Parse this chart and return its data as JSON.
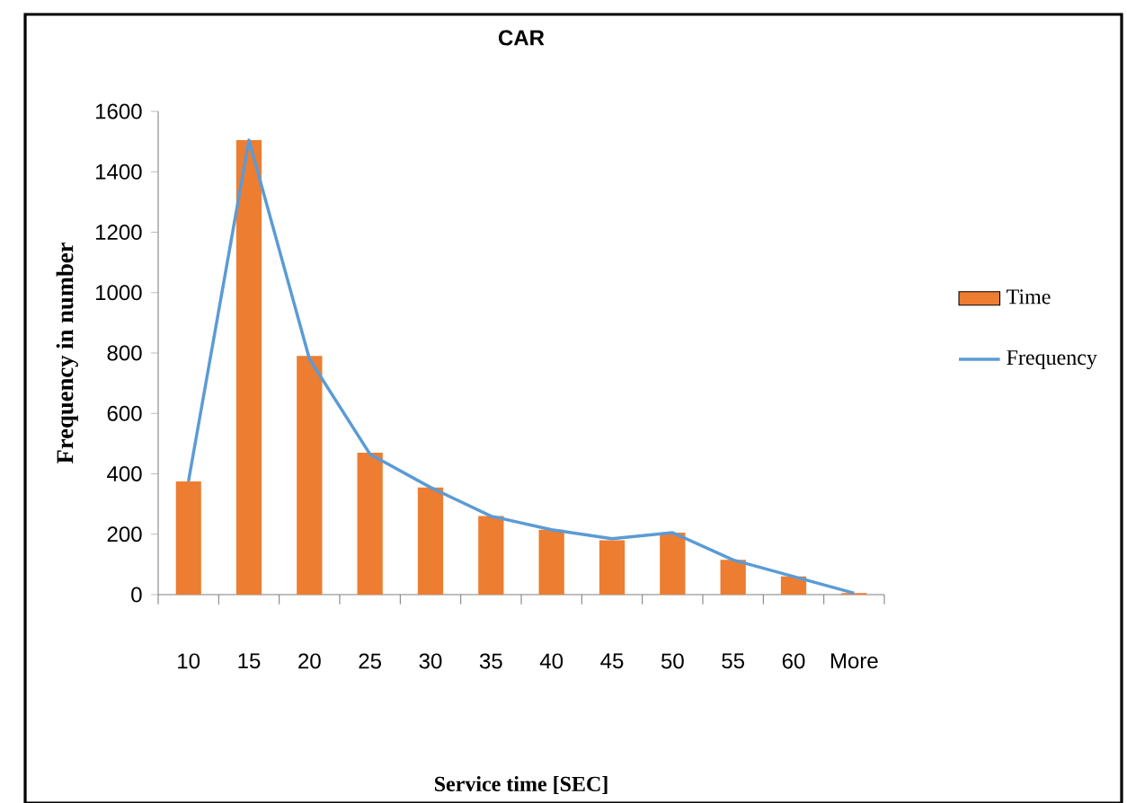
{
  "chart_data": {
    "type": "bar",
    "title": "CAR",
    "xlabel": "Service time [SEC]",
    "ylabel": "Frequency in number",
    "categories": [
      "10",
      "15",
      "20",
      "25",
      "30",
      "35",
      "40",
      "45",
      "50",
      "55",
      "60",
      "More"
    ],
    "series": [
      {
        "name": "Time",
        "color": "#ed7d31",
        "values": [
          375,
          1505,
          790,
          470,
          355,
          260,
          215,
          180,
          205,
          115,
          60,
          5
        ]
      },
      {
        "name": "Frequency",
        "type": "line",
        "color": "#5b9bd5",
        "values": [
          375,
          1505,
          780,
          465,
          355,
          260,
          215,
          185,
          205,
          115,
          60,
          5
        ]
      }
    ],
    "ylim": [
      0,
      1600
    ],
    "yticks": [
      0,
      200,
      400,
      600,
      800,
      1000,
      1200,
      1400,
      1600
    ],
    "legend": "right",
    "grid": false
  }
}
